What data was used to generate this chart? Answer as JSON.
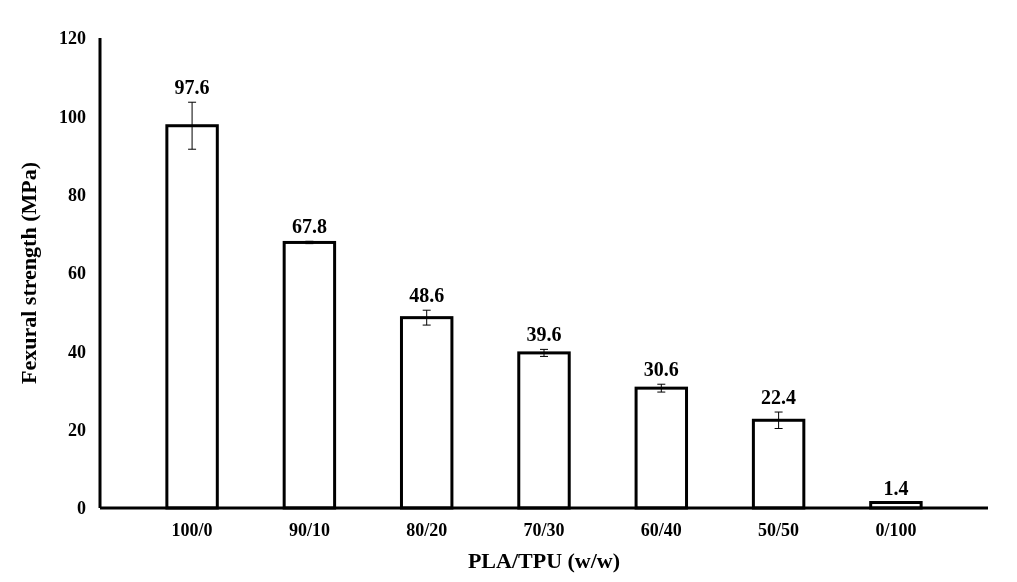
{
  "chart_data": {
    "type": "bar",
    "xlabel": "PLA/TPU (w/w)",
    "ylabel": "Fexural strength (MPa)",
    "categories": [
      "100/0",
      "90/10",
      "80/20",
      "70/30",
      "60/40",
      "50/50",
      "0/100"
    ],
    "values": [
      97.6,
      67.8,
      48.6,
      39.6,
      30.6,
      22.4,
      1.4
    ],
    "errors": [
      6.0,
      0.3,
      1.9,
      0.9,
      1.0,
      2.1,
      null
    ],
    "color": "#ffffff",
    "ylim": [
      0,
      120
    ],
    "yticks": [
      0,
      20,
      40,
      60,
      80,
      100,
      120
    ],
    "data_labels": true,
    "grid": false
  }
}
